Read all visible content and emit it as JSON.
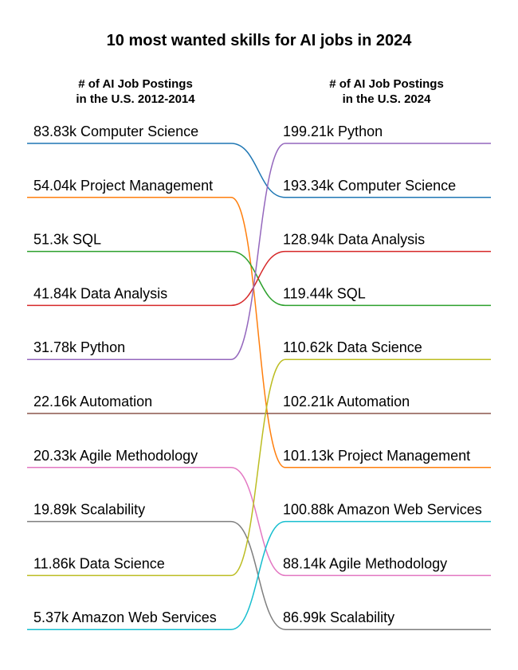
{
  "chart_data": {
    "type": "slope",
    "title": "10 most wanted skills for AI jobs in 2024",
    "columns": [
      {
        "line1": "# of AI Job Postings",
        "line2": "in the U.S. 2012-2014"
      },
      {
        "line1": "# of AI Job Postings",
        "line2": "in the U.S. 2024"
      }
    ],
    "left": [
      {
        "skill": "Computer Science",
        "value_label": "83.83k",
        "value": 83.83
      },
      {
        "skill": "Project Management",
        "value_label": "54.04k",
        "value": 54.04
      },
      {
        "skill": "SQL",
        "value_label": "51.3k",
        "value": 51.3
      },
      {
        "skill": "Data Analysis",
        "value_label": "41.84k",
        "value": 41.84
      },
      {
        "skill": "Python",
        "value_label": "31.78k",
        "value": 31.78
      },
      {
        "skill": "Automation",
        "value_label": "22.16k",
        "value": 22.16
      },
      {
        "skill": "Agile Methodology",
        "value_label": "20.33k",
        "value": 20.33
      },
      {
        "skill": "Scalability",
        "value_label": "19.89k",
        "value": 19.89
      },
      {
        "skill": "Data Science",
        "value_label": "11.86k",
        "value": 11.86
      },
      {
        "skill": "Amazon Web Services",
        "value_label": "5.37k",
        "value": 5.37
      }
    ],
    "right": [
      {
        "skill": "Python",
        "value_label": "199.21k",
        "value": 199.21
      },
      {
        "skill": "Computer Science",
        "value_label": "193.34k",
        "value": 193.34
      },
      {
        "skill": "Data Analysis",
        "value_label": "128.94k",
        "value": 128.94
      },
      {
        "skill": "SQL",
        "value_label": "119.44k",
        "value": 119.44
      },
      {
        "skill": "Data Science",
        "value_label": "110.62k",
        "value": 110.62
      },
      {
        "skill": "Automation",
        "value_label": "102.21k",
        "value": 102.21
      },
      {
        "skill": "Project Management",
        "value_label": "101.13k",
        "value": 101.13
      },
      {
        "skill": "Amazon Web Services",
        "value_label": "100.88k",
        "value": 100.88
      },
      {
        "skill": "Agile Methodology",
        "value_label": "88.14k",
        "value": 88.14
      },
      {
        "skill": "Scalability",
        "value_label": "86.99k",
        "value": 86.99
      }
    ],
    "colors": {
      "Computer Science": "#1f77b4",
      "Project Management": "#ff7f0e",
      "SQL": "#2ca02c",
      "Data Analysis": "#d62728",
      "Python": "#9467bd",
      "Automation": "#8c564b",
      "Agile Methodology": "#e377c2",
      "Scalability": "#7f7f7f",
      "Data Science": "#bcbd22",
      "Amazon Web Services": "#17becf"
    }
  }
}
